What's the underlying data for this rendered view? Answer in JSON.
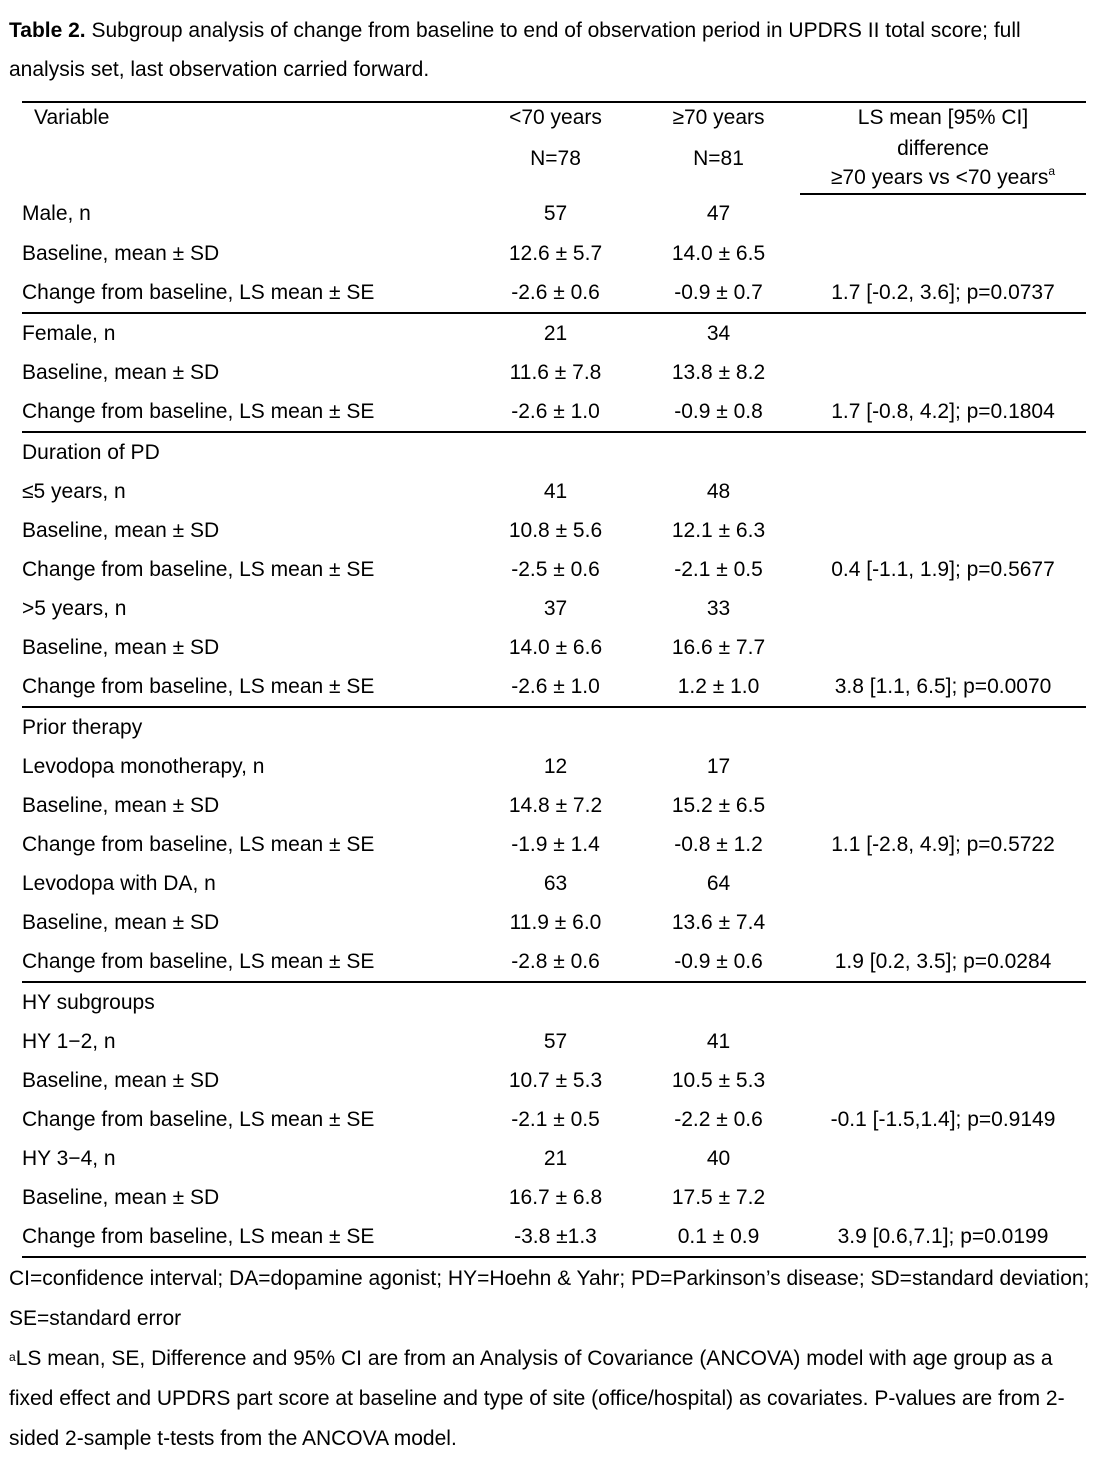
{
  "caption": {
    "label": "Table 2.",
    "text": " Subgroup analysis of change from baseline to end of observation period in UPDRS II total score; full analysis set, last observation carried forward."
  },
  "header": {
    "variable": "Variable",
    "col1_title": "<70 years",
    "col1_n": "N=78",
    "col2_title": "≥70 years",
    "col2_n": "N=81",
    "col3_line1": "LS mean [95% CI]",
    "col3_line2": "difference",
    "col3_line3": "≥70 years vs <70 years",
    "col3_sup": "a"
  },
  "rows": [
    {
      "level": "l1",
      "label": "Male, n",
      "c1": "57",
      "c2": "47",
      "c3": ""
    },
    {
      "level": "l3",
      "label": "Baseline, mean ± SD",
      "c1": "12.6 ± 5.7",
      "c2": "14.0 ± 6.5",
      "c3": ""
    },
    {
      "level": "l3",
      "label": "Change from baseline, LS mean ± SE",
      "c1": "-2.6 ± 0.6",
      "c2": "-0.9 ± 0.7",
      "c3": "1.7 [-0.2, 3.6]; p=0.0737",
      "sep": true
    },
    {
      "level": "l1",
      "label": "Female, n",
      "c1": "21",
      "c2": "34",
      "c3": ""
    },
    {
      "level": "l3",
      "label": "Baseline, mean ± SD",
      "c1": "11.6 ± 7.8",
      "c2": "13.8 ± 8.2",
      "c3": ""
    },
    {
      "level": "l3",
      "label": "Change from baseline, LS mean ± SE",
      "c1": "-2.6 ± 1.0",
      "c2": "-0.9 ± 0.8",
      "c3": "1.7 [-0.8, 4.2]; p=0.1804",
      "sep": true
    },
    {
      "level": "l1",
      "label": "Duration of PD",
      "c1": "",
      "c2": "",
      "c3": ""
    },
    {
      "level": "l2",
      "label": "≤5 years, n",
      "c1": "41",
      "c2": "48",
      "c3": ""
    },
    {
      "level": "l3",
      "label": "Baseline, mean ± SD",
      "c1": "10.8 ± 5.6",
      "c2": "12.1 ± 6.3",
      "c3": ""
    },
    {
      "level": "l3",
      "label": "Change from baseline, LS mean ± SE",
      "c1": "-2.5 ± 0.6",
      "c2": "-2.1 ± 0.5",
      "c3": "0.4 [-1.1, 1.9]; p=0.5677"
    },
    {
      "level": "l2",
      "label": ">5 years, n",
      "c1": "37",
      "c2": "33",
      "c3": ""
    },
    {
      "level": "l3",
      "label": "Baseline, mean ± SD",
      "c1": "14.0 ± 6.6",
      "c2": "16.6 ± 7.7",
      "c3": ""
    },
    {
      "level": "l3",
      "label": "Change from baseline, LS mean ± SE",
      "c1": "-2.6 ± 1.0",
      "c2": "1.2  ± 1.0",
      "c3": "3.8 [1.1, 6.5]; p=0.0070",
      "sep": true
    },
    {
      "level": "l1",
      "label": "Prior therapy",
      "c1": "",
      "c2": "",
      "c3": ""
    },
    {
      "level": "l2",
      "label": "Levodopa monotherapy, n",
      "c1": "12",
      "c2": "17",
      "c3": ""
    },
    {
      "level": "l3",
      "label": "Baseline, mean ± SD",
      "c1": "14.8 ± 7.2",
      "c2": "15.2 ± 6.5",
      "c3": ""
    },
    {
      "level": "l3",
      "label": "Change from baseline, LS mean ± SE",
      "c1": "-1.9 ± 1.4",
      "c2": "-0.8 ± 1.2",
      "c3": "1.1 [-2.8, 4.9]; p=0.5722"
    },
    {
      "level": "l2",
      "label": "Levodopa with DA, n",
      "c1": "63",
      "c2": "64",
      "c3": ""
    },
    {
      "level": "l3",
      "label": "Baseline, mean ± SD",
      "c1": "11.9 ± 6.0",
      "c2": "13.6 ± 7.4",
      "c3": ""
    },
    {
      "level": "l3",
      "label": "Change from baseline, LS mean ± SE",
      "c1": "-2.8 ± 0.6",
      "c2": "-0.9 ± 0.6",
      "c3": "1.9 [0.2, 3.5]; p=0.0284",
      "sep": true
    },
    {
      "level": "l1",
      "label": "HY subgroups",
      "c1": "",
      "c2": "",
      "c3": ""
    },
    {
      "level": "l2",
      "label": "HY 1−2, n",
      "c1": "57",
      "c2": "41",
      "c3": ""
    },
    {
      "level": "l3",
      "label": "Baseline, mean ± SD",
      "c1": "10.7 ± 5.3",
      "c2": "10.5 ± 5.3",
      "c3": ""
    },
    {
      "level": "l3",
      "label": "Change from baseline, LS mean ± SE",
      "c1": "-2.1 ± 0.5",
      "c2": "-2.2 ± 0.6",
      "c3": "-0.1 [-1.5,1.4]; p=0.9149"
    },
    {
      "level": "l2",
      "label": "HY 3−4, n",
      "c1": "21",
      "c2": "40",
      "c3": ""
    },
    {
      "level": "l3",
      "label": "Baseline, mean ± SD",
      "c1": "16.7 ± 6.8",
      "c2": "17.5 ± 7.2",
      "c3": ""
    },
    {
      "level": "l3",
      "label": "Change from baseline, LS mean ± SE",
      "c1": "-3.8 ±1.3",
      "c2": "0.1 ± 0.9",
      "c3": "3.9 [0.6,7.1]; p=0.0199",
      "last": true
    }
  ],
  "footnotes": {
    "abbrev": "CI=confidence interval; DA=dopamine agonist; HY=Hoehn & Yahr; PD=Parkinson’s disease; SD=standard deviation; SE=standard error",
    "note_sup": "a",
    "note_text": "LS mean, SE, Difference and 95% CI are from an Analysis of Covariance (ANCOVA) model with age group as a fixed effect and UPDRS part score at baseline and type of site (office/hospital) as covariates. P-values are from 2-sided 2-sample t-tests from the ANCOVA model."
  }
}
